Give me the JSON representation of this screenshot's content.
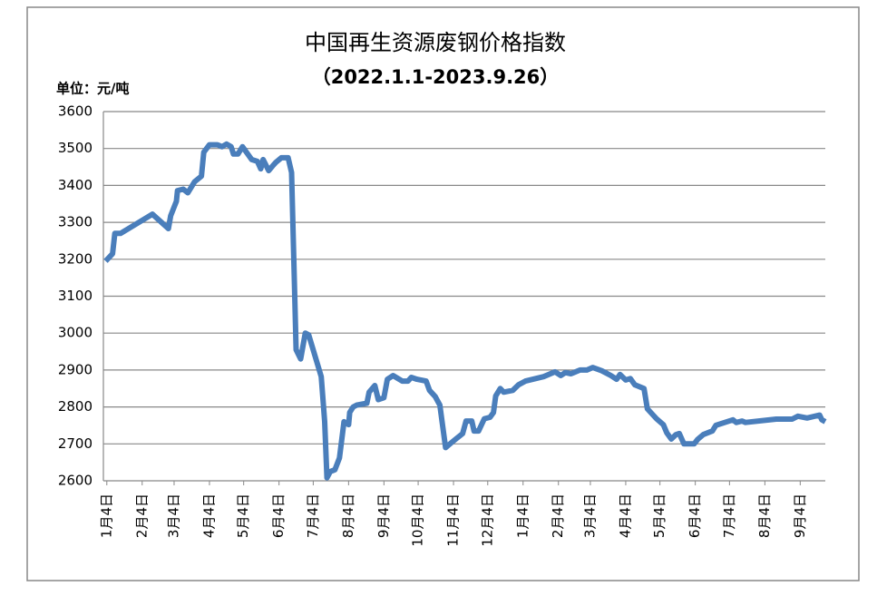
{
  "chart_data": {
    "type": "line",
    "title": "中国再生资源废钢价格指数",
    "subtitle": "（2022.1.1-2023.9.26）",
    "y_unit": "单位：元/吨",
    "x": [
      2,
      8,
      10,
      15,
      43,
      57,
      59,
      64,
      65,
      70,
      74,
      80,
      86,
      88,
      93,
      100,
      104,
      108,
      112,
      114,
      118,
      122,
      130,
      135,
      138,
      140,
      145,
      149,
      151,
      156,
      162,
      165,
      169,
      173,
      177,
      180,
      191,
      194,
      196,
      199,
      203,
      207,
      211,
      215,
      216,
      219,
      222,
      231,
      233,
      238,
      241,
      246,
      249,
      254,
      262,
      267,
      270,
      275,
      283,
      286,
      291,
      295,
      300,
      307,
      315,
      318,
      323,
      325,
      329,
      334,
      339,
      342,
      344,
      348,
      351,
      359,
      364,
      370,
      386,
      396,
      401,
      405,
      410,
      418,
      424,
      429,
      437,
      445,
      450,
      453,
      458,
      462,
      466,
      474,
      477,
      485,
      491,
      494,
      498,
      502,
      505,
      509,
      518,
      521,
      526,
      534,
      537,
      552,
      555,
      560,
      563,
      590,
      604,
      609,
      617,
      628,
      630,
      633
    ],
    "values": [
      3195,
      3215,
      3270,
      3270,
      3322,
      3283,
      3318,
      3357,
      3386,
      3390,
      3380,
      3410,
      3425,
      3490,
      3510,
      3510,
      3505,
      3512,
      3505,
      3485,
      3485,
      3505,
      3470,
      3465,
      3445,
      3470,
      3440,
      3455,
      3462,
      3475,
      3475,
      3435,
      2955,
      2930,
      3000,
      2995,
      2882,
      2760,
      2608,
      2625,
      2630,
      2662,
      2760,
      2752,
      2785,
      2800,
      2805,
      2810,
      2840,
      2858,
      2820,
      2825,
      2875,
      2885,
      2870,
      2870,
      2880,
      2875,
      2870,
      2845,
      2828,
      2805,
      2690,
      2708,
      2728,
      2762,
      2762,
      2735,
      2735,
      2768,
      2772,
      2785,
      2830,
      2850,
      2840,
      2845,
      2860,
      2870,
      2882,
      2895,
      2885,
      2893,
      2890,
      2900,
      2900,
      2907,
      2898,
      2885,
      2875,
      2888,
      2873,
      2877,
      2860,
      2850,
      2795,
      2768,
      2752,
      2730,
      2713,
      2725,
      2728,
      2700,
      2700,
      2712,
      2725,
      2735,
      2750,
      2765,
      2758,
      2762,
      2758,
      2767,
      2767,
      2775,
      2770,
      2778,
      2765,
      2760
    ],
    "color": "#4a7ebb",
    "xlim": [
      0,
      633
    ],
    "xticks": [
      {
        "value": 3,
        "label": "1月4日"
      },
      {
        "value": 34,
        "label": "2月4日"
      },
      {
        "value": 62,
        "label": "3月4日"
      },
      {
        "value": 93,
        "label": "4月4日"
      },
      {
        "value": 123,
        "label": "5月4日"
      },
      {
        "value": 154,
        "label": "6月4日"
      },
      {
        "value": 184,
        "label": "7月4日"
      },
      {
        "value": 215,
        "label": "8月4日"
      },
      {
        "value": 246,
        "label": "9月4日"
      },
      {
        "value": 276,
        "label": "10月4日"
      },
      {
        "value": 307,
        "label": "11月4日"
      },
      {
        "value": 337,
        "label": "12月4日"
      },
      {
        "value": 368,
        "label": "1月4日"
      },
      {
        "value": 399,
        "label": "2月4日"
      },
      {
        "value": 427,
        "label": "3月4日"
      },
      {
        "value": 458,
        "label": "4月4日"
      },
      {
        "value": 488,
        "label": "5月4日"
      },
      {
        "value": 519,
        "label": "6月4日"
      },
      {
        "value": 549,
        "label": "7月4日"
      },
      {
        "value": 580,
        "label": "8月4日"
      },
      {
        "value": 611,
        "label": "9月4日"
      }
    ],
    "ylim": [
      2600,
      3600
    ],
    "yticks": [
      2600,
      2700,
      2800,
      2900,
      3000,
      3100,
      3200,
      3300,
      3400,
      3500,
      3600
    ],
    "grid": true
  }
}
